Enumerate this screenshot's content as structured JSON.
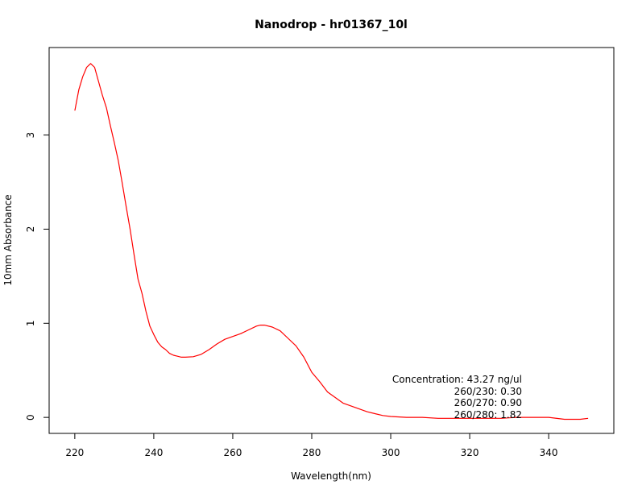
{
  "chart_data": {
    "type": "line",
    "title": "Nanodrop - hr01367_10l",
    "xlabel": "Wavelength(nm)",
    "ylabel": "10mm Absorbance",
    "xlim": [
      213.5,
      356.5
    ],
    "ylim": [
      -0.17,
      3.93
    ],
    "x_ticks": [
      220,
      240,
      260,
      280,
      300,
      320,
      340
    ],
    "y_ticks": [
      0,
      1,
      2,
      3
    ],
    "grid": false,
    "line_color": "#ff0000",
    "series": [
      {
        "x": [
          220,
          221,
          222,
          223,
          224,
          225,
          226,
          227,
          228,
          229,
          230,
          231,
          232,
          233,
          234,
          235,
          236,
          237,
          238,
          239,
          240,
          241,
          242,
          243,
          244,
          245,
          246,
          247,
          248,
          250,
          252,
          254,
          256,
          258,
          260,
          262,
          264,
          266,
          267,
          268,
          270,
          272,
          274,
          276,
          278,
          280,
          282,
          284,
          286,
          288,
          290,
          292,
          294,
          296,
          298,
          300,
          304,
          308,
          312,
          316,
          320,
          324,
          328,
          332,
          336,
          340,
          344,
          348,
          350
        ],
        "y": [
          3.26,
          3.48,
          3.62,
          3.72,
          3.76,
          3.72,
          3.57,
          3.42,
          3.29,
          3.1,
          2.92,
          2.73,
          2.49,
          2.24,
          2.0,
          1.73,
          1.47,
          1.32,
          1.13,
          0.97,
          0.88,
          0.8,
          0.75,
          0.72,
          0.68,
          0.66,
          0.65,
          0.64,
          0.64,
          0.645,
          0.67,
          0.72,
          0.78,
          0.83,
          0.86,
          0.89,
          0.93,
          0.97,
          0.98,
          0.98,
          0.96,
          0.92,
          0.84,
          0.76,
          0.64,
          0.48,
          0.38,
          0.27,
          0.21,
          0.15,
          0.12,
          0.09,
          0.06,
          0.04,
          0.02,
          0.01,
          0.0,
          0.0,
          -0.01,
          -0.01,
          -0.01,
          -0.01,
          -0.01,
          0.0,
          0.0,
          0.0,
          -0.02,
          -0.02,
          -0.01
        ]
      }
    ],
    "annotations": [
      "Concentration: 43.27 ng/ul",
      "260/230: 0.30",
      "260/270: 0.90",
      "260/280: 1.82"
    ]
  }
}
